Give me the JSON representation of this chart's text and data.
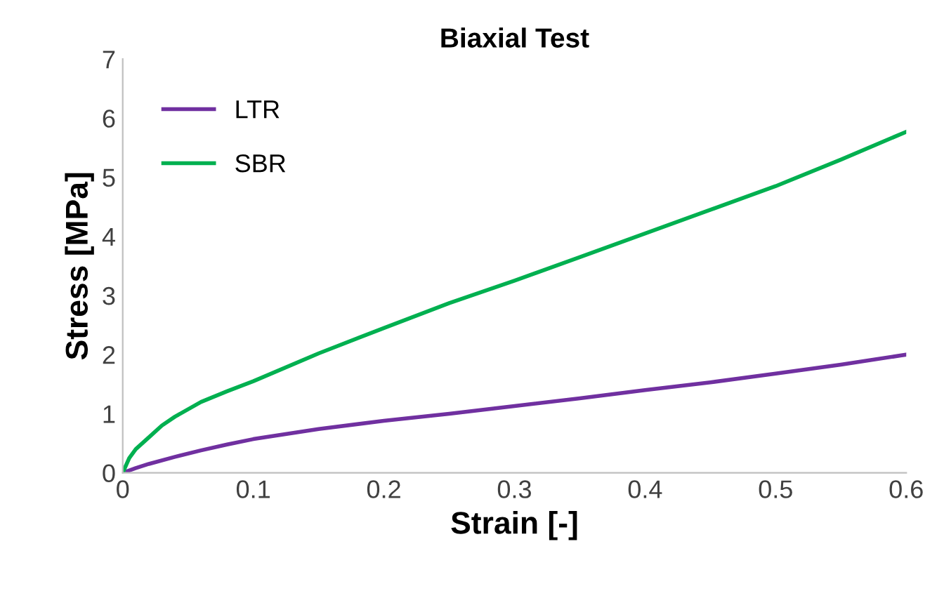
{
  "chart_data": {
    "type": "line",
    "title": "Biaxial Test",
    "xlabel": "Strain [-]",
    "ylabel": "Stress [MPa]",
    "xlim": [
      0,
      0.6
    ],
    "xticks": [
      0,
      0.1,
      0.2,
      0.3,
      0.4,
      0.5,
      0.6
    ],
    "ylim": [
      0,
      7
    ],
    "yticks": [
      0,
      1,
      2,
      3,
      4,
      5,
      6,
      7
    ],
    "grid": false,
    "legend": "top left",
    "marker": "none",
    "line_style": "solid",
    "series": [
      {
        "name": "LTR",
        "color": "#7030a0",
        "x": [
          0,
          0.01,
          0.02,
          0.04,
          0.06,
          0.08,
          0.1,
          0.15,
          0.2,
          0.25,
          0.3,
          0.35,
          0.4,
          0.45,
          0.5,
          0.55,
          0.6
        ],
        "values": [
          0,
          0.08,
          0.15,
          0.27,
          0.38,
          0.48,
          0.57,
          0.74,
          0.88,
          1.0,
          1.13,
          1.26,
          1.4,
          1.53,
          1.68,
          1.83,
          2.0
        ]
      },
      {
        "name": "SBR",
        "color": "#00b050",
        "x": [
          0,
          0.005,
          0.01,
          0.02,
          0.03,
          0.04,
          0.06,
          0.08,
          0.1,
          0.15,
          0.2,
          0.25,
          0.3,
          0.35,
          0.4,
          0.45,
          0.5,
          0.55,
          0.6
        ],
        "values": [
          0,
          0.25,
          0.4,
          0.6,
          0.8,
          0.95,
          1.2,
          1.38,
          1.55,
          2.02,
          2.45,
          2.87,
          3.25,
          3.65,
          4.05,
          4.45,
          4.85,
          5.3,
          5.77
        ]
      }
    ]
  }
}
